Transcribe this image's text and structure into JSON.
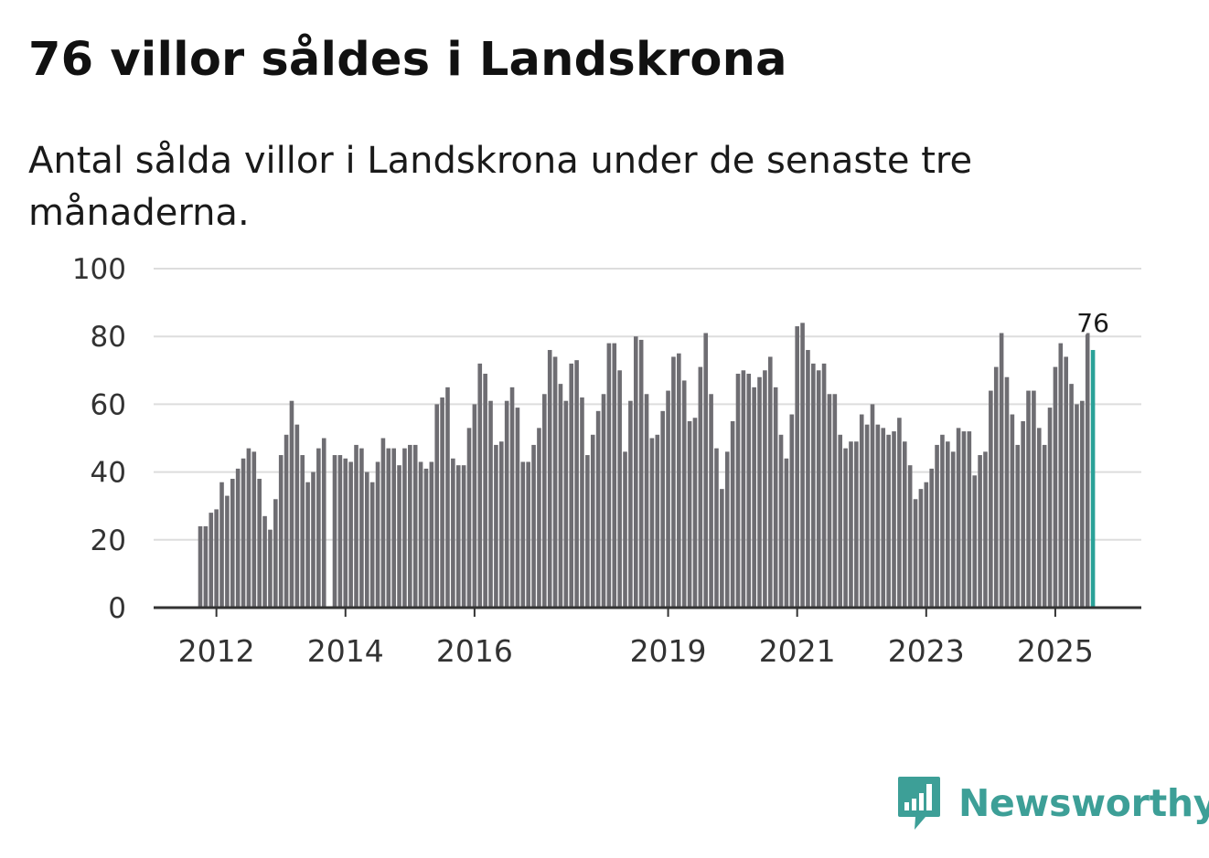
{
  "title": "76 villor såldes i Landskrona",
  "subtitle": "Antal sålda villor i Landskrona under de senaste tre månaderna.",
  "brand": {
    "name": "Newsworthy",
    "icon": "newsworthy-logo-icon",
    "color": "#3d9f97"
  },
  "colors": {
    "bar": "#6e6d72",
    "highlight": "#2aa198",
    "grid": "#dddddd",
    "axis": "#333333"
  },
  "chart_data": {
    "type": "bar",
    "title": "76 villor såldes i Landskrona",
    "ylabel": "",
    "xlabel": "",
    "ylim": [
      0,
      100
    ],
    "yticks": [
      "0",
      "20",
      "40",
      "60",
      "80",
      "100"
    ],
    "x_start": "2011-10",
    "xticks": [
      {
        "label": "2012",
        "index": 3
      },
      {
        "label": "2014",
        "index": 27
      },
      {
        "label": "2016",
        "index": 51
      },
      {
        "label": "2019",
        "index": 87
      },
      {
        "label": "2021",
        "index": 111
      },
      {
        "label": "2023",
        "index": 135
      },
      {
        "label": "2025",
        "index": 159
      }
    ],
    "values": [
      24,
      24,
      28,
      29,
      37,
      33,
      38,
      41,
      44,
      47,
      46,
      38,
      27,
      23,
      32,
      45,
      51,
      61,
      54,
      45,
      37,
      40,
      47,
      50,
      null,
      45,
      45,
      44,
      43,
      48,
      47,
      40,
      37,
      43,
      50,
      47,
      47,
      42,
      47,
      48,
      48,
      43,
      41,
      43,
      60,
      62,
      65,
      44,
      42,
      42,
      53,
      60,
      72,
      69,
      61,
      48,
      49,
      61,
      65,
      59,
      43,
      43,
      48,
      53,
      63,
      76,
      74,
      66,
      61,
      72,
      73,
      62,
      45,
      51,
      58,
      63,
      78,
      78,
      70,
      46,
      61,
      80,
      79,
      63,
      50,
      51,
      58,
      64,
      74,
      75,
      67,
      55,
      56,
      71,
      81,
      63,
      47,
      35,
      46,
      55,
      69,
      70,
      69,
      65,
      68,
      70,
      74,
      65,
      51,
      44,
      57,
      83,
      84,
      76,
      72,
      70,
      72,
      63,
      63,
      51,
      47,
      49,
      49,
      57,
      54,
      60,
      54,
      53,
      51,
      52,
      56,
      49,
      42,
      32,
      35,
      37,
      41,
      48,
      51,
      49,
      46,
      53,
      52,
      52,
      39,
      45,
      46,
      64,
      71,
      81,
      68,
      57,
      48,
      55,
      64,
      64,
      53,
      48,
      59,
      71,
      78,
      74,
      66,
      60,
      61,
      81,
      76
    ],
    "highlight": {
      "index": 166,
      "value": 76,
      "label": "76"
    }
  }
}
